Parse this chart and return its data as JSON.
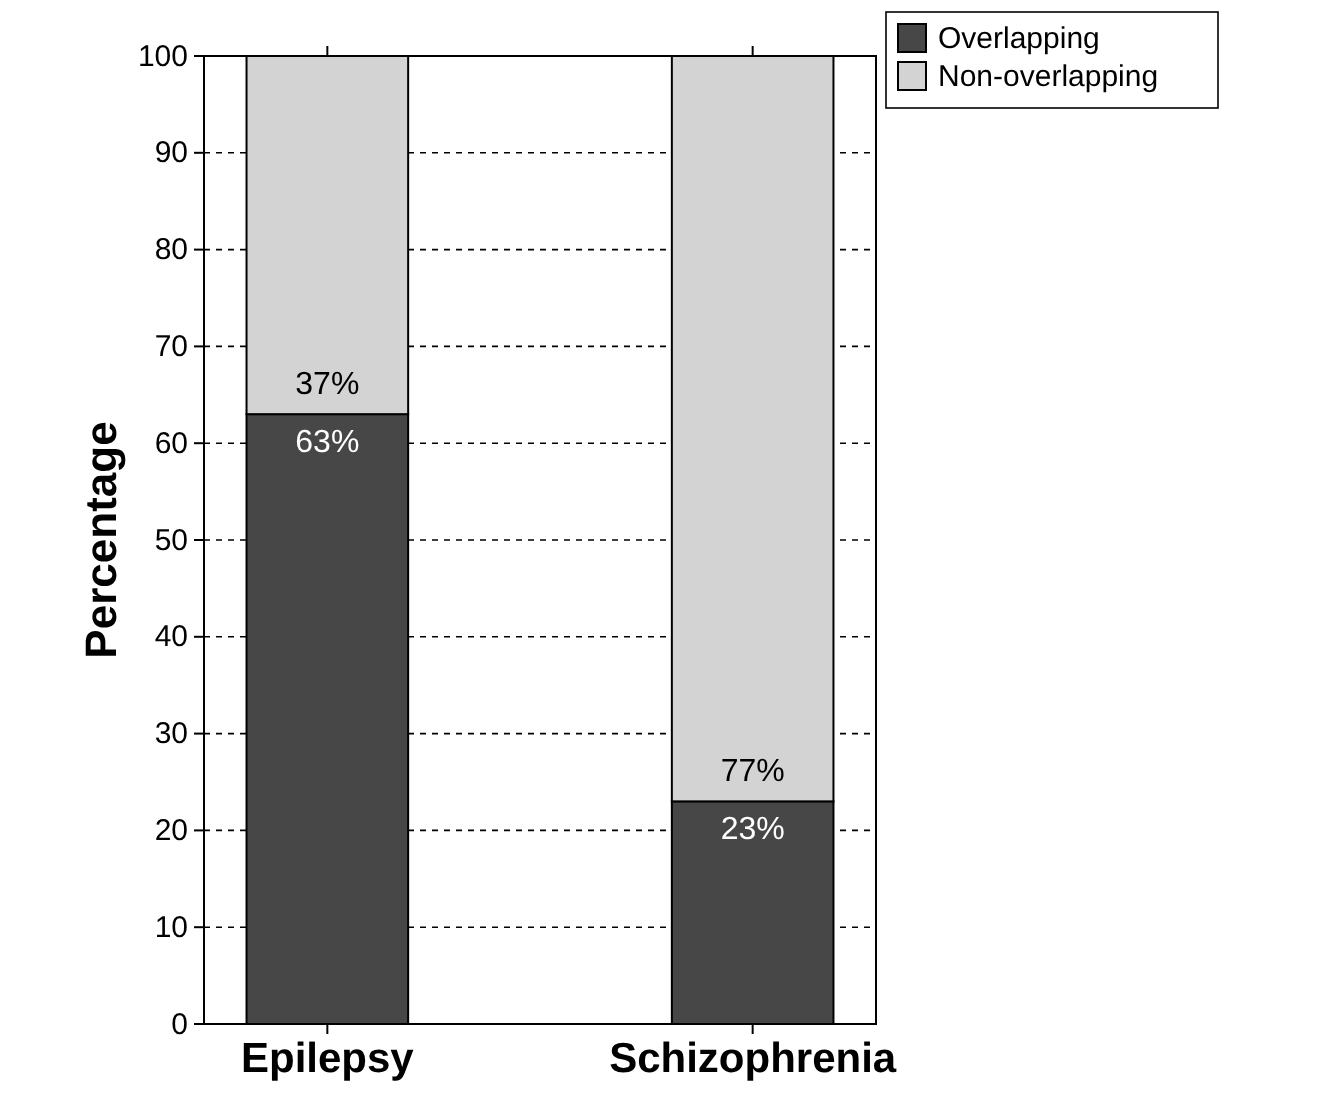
{
  "chart_data": {
    "type": "bar",
    "ylabel": "Percentage",
    "categories": [
      "Epilepsy",
      "Schizophrenia"
    ],
    "stacked": true,
    "series": [
      {
        "name": "Overlapping",
        "color": "#474747",
        "values": [
          63,
          23
        ],
        "value_labels": [
          "63%",
          "23%"
        ]
      },
      {
        "name": "Non-overlapping",
        "color": "#d3d3d3",
        "values": [
          37,
          77
        ],
        "value_labels": [
          "37%",
          "77%"
        ]
      }
    ],
    "ylim": [
      0,
      100
    ],
    "yticks": [
      0,
      10,
      20,
      30,
      40,
      50,
      60,
      70,
      80,
      90,
      100
    ],
    "grid": "y",
    "legend": "top right"
  }
}
